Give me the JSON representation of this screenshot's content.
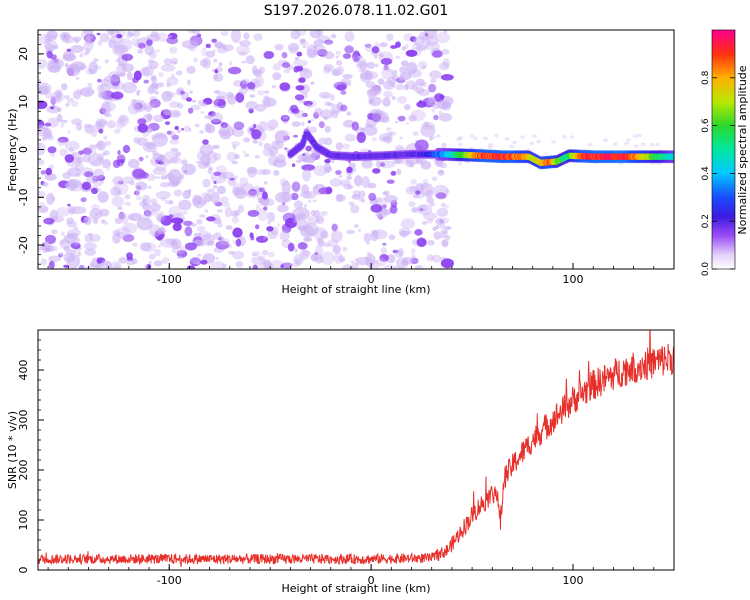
{
  "title": "S197.2026.078.11.02.G01",
  "colors": {
    "snr_line": "#e8302a",
    "spec_dot": "#8a3cf0",
    "spec_light": "#cdb3f5"
  },
  "chart_data": [
    {
      "type": "heatmap",
      "name": "spectrogram",
      "xlabel": "Height of straight line (km)",
      "ylabel": "Frequency (Hz)",
      "xlim": [
        -165,
        150
      ],
      "ylim": [
        -25,
        25
      ],
      "xticks": [
        {
          "v": -100,
          "label": "-100"
        },
        {
          "v": 0,
          "label": "0"
        },
        {
          "v": 100,
          "label": "100"
        }
      ],
      "yticks": [
        {
          "v": 20,
          "label": "20"
        },
        {
          "v": 10,
          "label": "10"
        },
        {
          "v": 0,
          "label": "0"
        },
        {
          "v": -10,
          "label": "-10"
        },
        {
          "v": -20,
          "label": "-20"
        }
      ],
      "noise_region_x": [
        -165,
        30
      ],
      "ridge": [
        {
          "x": -40,
          "f": -1.0
        },
        {
          "x": -34,
          "f": 1.0
        },
        {
          "x": -32,
          "f": 3.5
        },
        {
          "x": -27,
          "f": 0.5
        },
        {
          "x": -20,
          "f": -1.2
        },
        {
          "x": -10,
          "f": -1.5
        },
        {
          "x": 5,
          "f": -1.3
        },
        {
          "x": 20,
          "f": -1.0
        },
        {
          "x": 35,
          "f": -1.0
        },
        {
          "x": 50,
          "f": -1.2
        },
        {
          "x": 65,
          "f": -1.5
        },
        {
          "x": 78,
          "f": -1.5
        },
        {
          "x": 84,
          "f": -2.8
        },
        {
          "x": 92,
          "f": -2.5
        },
        {
          "x": 98,
          "f": -1.3
        },
        {
          "x": 110,
          "f": -1.5
        },
        {
          "x": 130,
          "f": -1.5
        },
        {
          "x": 150,
          "f": -1.5
        }
      ],
      "ridge_amplitude": [
        {
          "x": -40,
          "a": 0.05
        },
        {
          "x": -30,
          "a": 0.12
        },
        {
          "x": 0,
          "a": 0.12
        },
        {
          "x": 20,
          "a": 0.15
        },
        {
          "x": 30,
          "a": 0.25
        },
        {
          "x": 40,
          "a": 0.45
        },
        {
          "x": 55,
          "a": 0.9
        },
        {
          "x": 70,
          "a": 0.9
        },
        {
          "x": 80,
          "a": 0.7
        },
        {
          "x": 88,
          "a": 0.85
        },
        {
          "x": 96,
          "a": 0.5
        },
        {
          "x": 105,
          "a": 0.9
        },
        {
          "x": 125,
          "a": 0.95
        },
        {
          "x": 150,
          "a": 0.4
        }
      ]
    },
    {
      "type": "colorbar",
      "name": "colorbar",
      "label": "Normalized spectral amplitude",
      "range": [
        0.0,
        1.0
      ],
      "ticks": [
        {
          "v": 0.0,
          "label": "0.0"
        },
        {
          "v": 0.2,
          "label": "0.2"
        },
        {
          "v": 0.4,
          "label": "0.4"
        },
        {
          "v": 0.6,
          "label": "0.6"
        },
        {
          "v": 0.8,
          "label": "0.8"
        }
      ]
    },
    {
      "type": "line",
      "name": "snr",
      "xlabel": "Height of straight line (km)",
      "ylabel": "SNR (10 * v/v)",
      "xlim": [
        -165,
        150
      ],
      "ylim": [
        0,
        480
      ],
      "xticks": [
        {
          "v": -100,
          "label": "-100"
        },
        {
          "v": 0,
          "label": "0"
        },
        {
          "v": 100,
          "label": "100"
        }
      ],
      "yticks": [
        {
          "v": 0,
          "label": "0"
        },
        {
          "v": 100,
          "label": "100"
        },
        {
          "v": 200,
          "label": "200"
        },
        {
          "v": 300,
          "label": "300"
        },
        {
          "v": 400,
          "label": "400"
        }
      ],
      "trend": [
        {
          "x": -165,
          "y": 22
        },
        {
          "x": -100,
          "y": 22
        },
        {
          "x": 0,
          "y": 22
        },
        {
          "x": 30,
          "y": 24
        },
        {
          "x": 38,
          "y": 40
        },
        {
          "x": 45,
          "y": 80
        },
        {
          "x": 52,
          "y": 120
        },
        {
          "x": 58,
          "y": 145
        },
        {
          "x": 62,
          "y": 160
        },
        {
          "x": 64,
          "y": 95
        },
        {
          "x": 66,
          "y": 185
        },
        {
          "x": 72,
          "y": 220
        },
        {
          "x": 80,
          "y": 260
        },
        {
          "x": 90,
          "y": 300
        },
        {
          "x": 100,
          "y": 340
        },
        {
          "x": 110,
          "y": 370
        },
        {
          "x": 125,
          "y": 400
        },
        {
          "x": 140,
          "y": 415
        },
        {
          "x": 150,
          "y": 425
        }
      ],
      "noise_amplitude": [
        {
          "x": -165,
          "a": 10
        },
        {
          "x": 30,
          "a": 10
        },
        {
          "x": 50,
          "a": 20
        },
        {
          "x": 100,
          "a": 30
        },
        {
          "x": 150,
          "a": 35
        }
      ]
    }
  ]
}
